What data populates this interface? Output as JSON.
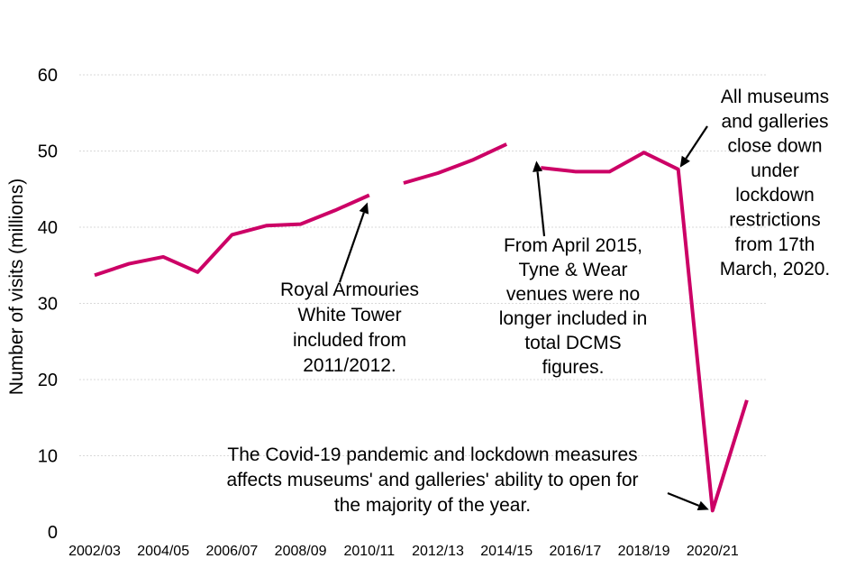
{
  "chart_data": {
    "type": "line",
    "title": "",
    "xlabel": "",
    "ylabel": "Number of visits (millions)",
    "ylim": [
      0,
      60
    ],
    "yticks": [
      "0",
      "10",
      "20",
      "30",
      "40",
      "50",
      "60"
    ],
    "grid": true,
    "x": [
      "2002/03",
      "2003/04",
      "2004/05",
      "2005/06",
      "2006/07",
      "2007/08",
      "2008/09",
      "2009/10",
      "2010/11",
      "2011/12",
      "2012/13",
      "2013/14",
      "2014/15",
      "2015/16",
      "2016/17",
      "2017/18",
      "2018/19",
      "2019/20",
      "2020/21",
      "2021/22"
    ],
    "xtick_labels": [
      "2002/03",
      "2004/05",
      "2006/07",
      "2008/09",
      "2010/11",
      "2012/13",
      "2014/15",
      "2016/17",
      "2018/19",
      "2020/21"
    ],
    "segments": [
      {
        "name": "segment-1",
        "start": 0,
        "values": [
          33.7,
          35.2,
          36.1,
          34.1,
          39.0,
          40.2,
          40.4,
          42.2,
          44.2
        ]
      },
      {
        "name": "segment-2",
        "start": 9,
        "values": [
          45.8,
          47.1,
          48.8,
          50.9
        ]
      },
      {
        "name": "segment-3",
        "start": 13,
        "values": [
          47.8,
          47.3,
          47.3,
          49.8,
          47.6,
          2.8,
          17.3
        ]
      }
    ],
    "series_color": "#cc0066",
    "annotations": [
      {
        "name": "annotation-royal-armouries",
        "lines": [
          "Royal Armouries",
          "White Tower",
          "included from",
          "2011/2012."
        ],
        "points_to": {
          "x": "2010/11",
          "y": 44.2
        }
      },
      {
        "name": "annotation-tyne-wear",
        "lines": [
          "From April 2015,",
          "Tyne & Wear",
          "venues were no",
          "longer included in",
          "total DCMS",
          "figures."
        ],
        "points_to": {
          "x": "2015/16",
          "y": 49.3
        }
      },
      {
        "name": "annotation-lockdown",
        "lines": [
          "All museums",
          "and galleries",
          "close down",
          "under",
          "lockdown",
          "restrictions",
          "from 17th",
          "March, 2020."
        ],
        "points_to": {
          "x": "2019/20",
          "y": 47.6
        }
      },
      {
        "name": "annotation-covid",
        "lines": [
          "The Covid-19 pandemic and lockdown measures",
          "affects museums' and galleries' ability to open for",
          "the majority of the year."
        ],
        "points_to": {
          "x": "2020/21",
          "y": 2.8
        }
      }
    ]
  }
}
